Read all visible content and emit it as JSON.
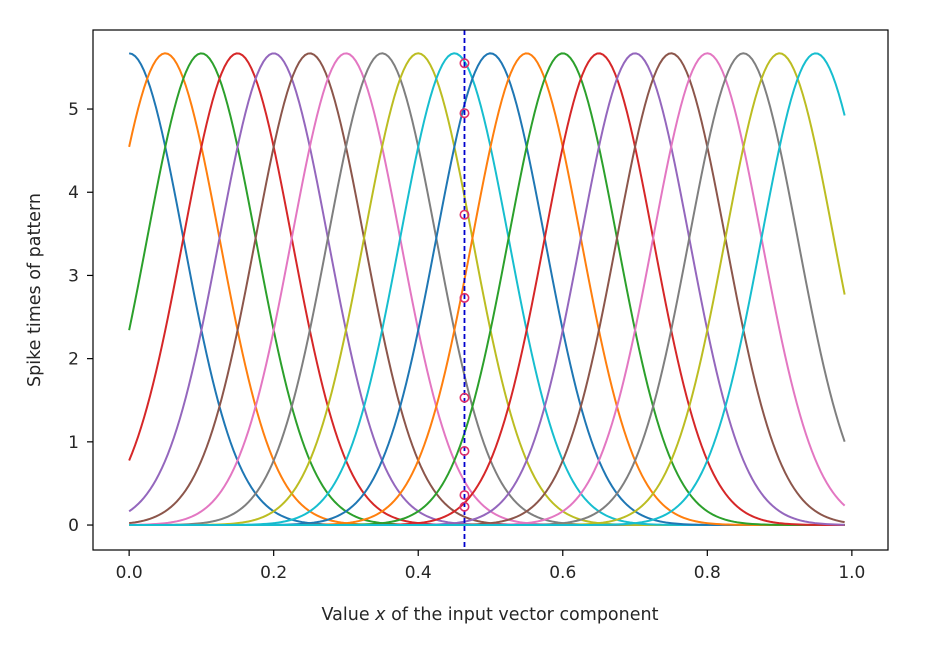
{
  "chart_data": {
    "type": "line",
    "title": "",
    "xlabel_parts": [
      "Value ",
      "x",
      " of the input vector component"
    ],
    "ylabel": "Spike times of pattern",
    "xlim": [
      -0.05,
      1.05
    ],
    "ylim": [
      -0.3,
      5.95
    ],
    "x_range": [
      0.0,
      0.99
    ],
    "x_ticks": [
      0.0,
      0.2,
      0.4,
      0.6,
      0.8,
      1.0
    ],
    "x_tick_labels": [
      "0.0",
      "0.2",
      "0.4",
      "0.6",
      "0.8",
      "1.0"
    ],
    "y_ticks": [
      0,
      1,
      2,
      3,
      4,
      5
    ],
    "y_tick_labels": [
      "0",
      "1",
      "2",
      "3",
      "4",
      "5"
    ],
    "curve_peak": 5.67,
    "curve_width_sigma": 0.0752,
    "centers": [
      0.0,
      0.05,
      0.1,
      0.15,
      0.2,
      0.25,
      0.3,
      0.35,
      0.4,
      0.45,
      0.5,
      0.55,
      0.6,
      0.65,
      0.7,
      0.75,
      0.8,
      0.85,
      0.9,
      0.95
    ],
    "colors": [
      "#1f77b4",
      "#ff7f0e",
      "#2ca02c",
      "#d62728",
      "#9467bd",
      "#8c564b",
      "#e377c2",
      "#7f7f7f",
      "#bcbd22",
      "#17becf",
      "#1f77b4",
      "#ff7f0e",
      "#2ca02c",
      "#d62728",
      "#9467bd",
      "#8c564b",
      "#e377c2",
      "#7f7f7f",
      "#bcbd22",
      "#17becf"
    ],
    "vertical_marker": {
      "x": 0.464,
      "color": "#0000cc",
      "style": "dashed"
    },
    "marker_points": {
      "x": 0.464,
      "y": [
        5.55,
        4.95,
        3.73,
        2.73,
        1.53,
        0.89,
        0.36,
        0.22
      ],
      "color": "#e0306a"
    },
    "grid": false,
    "legend": "none"
  }
}
